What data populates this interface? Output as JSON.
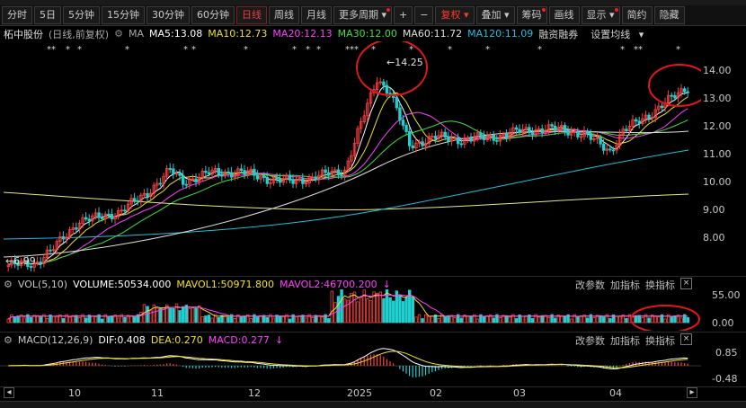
{
  "toolbar": {
    "periods": [
      "分时",
      "5日",
      "5分钟",
      "15分钟",
      "30分钟",
      "60分钟",
      "日线",
      "周线",
      "月线",
      "更多周期"
    ],
    "active_period": "日线",
    "plus": "+",
    "minus": "−",
    "fuquan": "复权",
    "diejia": "叠加",
    "chouma": "筹码",
    "huaxian": "画线",
    "xianshi": "显示",
    "jianyue": "简约",
    "yincang": "隐藏"
  },
  "main": {
    "stock_name": "柘中股份",
    "mode": "(日线,前复权)",
    "ma5": "MA5:13.08",
    "ma10": "MA10:12.73",
    "ma20": "MA20:12.13",
    "ma30": "MA30:12.00",
    "ma60": "MA60:11.72",
    "ma120": "MA120:11.09",
    "rongzi": "融资融券",
    "settings": "设置均线",
    "high_label": "14.25",
    "low_label": "6.99",
    "y_ticks": [
      "14.00",
      "13.00",
      "12.00",
      "11.00",
      "10.00",
      "9.00",
      "8.00"
    ],
    "colors": {
      "ma5": "#ffffff",
      "ma10": "#f0e020",
      "ma20": "#ff40ff",
      "ma30": "#40e040",
      "ma60": "#e0e0e0",
      "ma120": "#20c0e0",
      "up": "#ff4040",
      "down": "#20d0d0"
    }
  },
  "volume": {
    "label": "VOL(5,10)",
    "value": "VOLUME:50534.000",
    "mavol1": "MAVOL1:50971.800",
    "mavol2": "MAVOL2:46700.200",
    "y_ticks": [
      "55.00",
      "0.00"
    ]
  },
  "macd": {
    "label": "MACD(12,26,9)",
    "dif": "DIF:0.408",
    "dea": "DEA:0.270",
    "macd": "MACD:0.277",
    "y_ticks": [
      "0.85",
      "-0.48"
    ]
  },
  "panel_buttons": {
    "params": "改参数",
    "add": "加指标",
    "swap": "换指标",
    "close": "×"
  },
  "x_labels": [
    "10",
    "11",
    "12",
    "2025",
    "02",
    "03",
    "04"
  ]
}
